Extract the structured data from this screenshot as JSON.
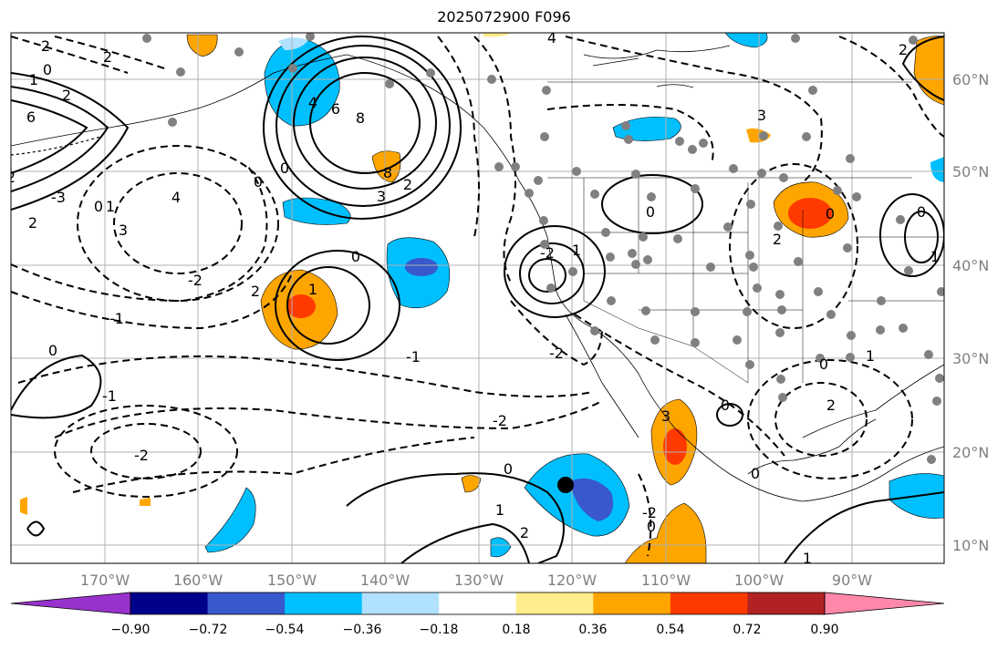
{
  "map": {
    "title": "2025072900 F096",
    "lat_labels": [
      "60°N",
      "50°N",
      "40°N",
      "30°N",
      "20°N",
      "10°N"
    ],
    "lon_labels": [
      "170°W",
      "160°W",
      "150°W",
      "140°W",
      "130°W",
      "120°W",
      "110°W",
      "100°W",
      "90°W"
    ]
  },
  "colorbar": {
    "tick_labels": [
      "−0.90",
      "−0.72",
      "−0.54",
      "−0.36",
      "−0.18",
      "0.18",
      "0.36",
      "0.54",
      "0.72",
      "0.90"
    ],
    "colors": [
      "#9932cc",
      "#00008b",
      "#3858cc",
      "#00bfff",
      "#b0e2ff",
      "#ffffff",
      "#ffec8b",
      "#ffa500",
      "#ff3a00",
      "#b22222",
      "#ff88aa"
    ]
  },
  "contour_labels": [
    "2",
    "2",
    "0",
    "1",
    "2",
    "4",
    "6",
    "8",
    "-3",
    "2",
    "0",
    "1",
    "3",
    "4",
    "-2",
    "-1",
    "0",
    "0",
    "-2",
    "-1",
    "4",
    "6",
    "8",
    "3",
    "2",
    "1",
    "-2",
    "1",
    "0",
    "-2",
    "-1",
    "2",
    "0",
    "-2",
    "3",
    "0",
    "1",
    "2",
    "0",
    "-2",
    "0",
    "1",
    "2",
    "0",
    "2",
    "0",
    "1",
    "0",
    "0",
    "3",
    "2",
    "1",
    "0",
    "2"
  ]
}
